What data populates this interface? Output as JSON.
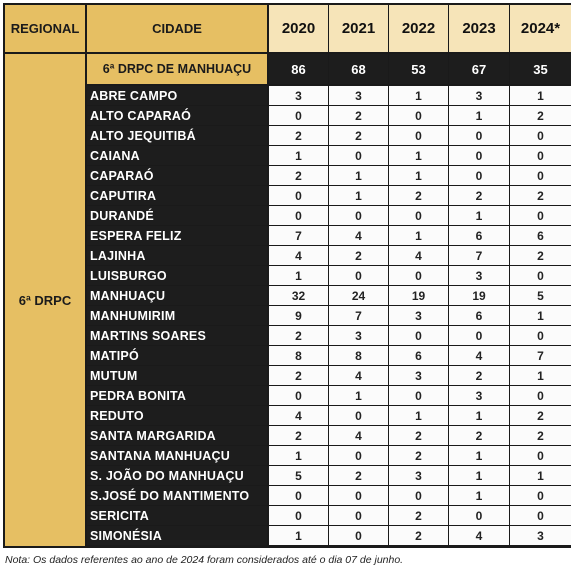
{
  "headers": {
    "regional": "REGIONAL",
    "cidade": "CIDADE",
    "years": [
      "2020",
      "2021",
      "2022",
      "2023",
      "2024*"
    ]
  },
  "regional_label": "6ª DRPC",
  "summary": {
    "label": "6ª DRPC DE MANHUAÇU",
    "values": [
      "86",
      "68",
      "53",
      "67",
      "35"
    ]
  },
  "rows": [
    {
      "city": "ABRE CAMPO",
      "values": [
        "3",
        "3",
        "1",
        "3",
        "1"
      ]
    },
    {
      "city": "ALTO CAPARAÓ",
      "values": [
        "0",
        "2",
        "0",
        "1",
        "2"
      ]
    },
    {
      "city": "ALTO JEQUITIBÁ",
      "values": [
        "2",
        "2",
        "0",
        "0",
        "0"
      ]
    },
    {
      "city": "CAIANA",
      "values": [
        "1",
        "0",
        "1",
        "0",
        "0"
      ]
    },
    {
      "city": "CAPARAÓ",
      "values": [
        "2",
        "1",
        "1",
        "0",
        "0"
      ]
    },
    {
      "city": "CAPUTIRA",
      "values": [
        "0",
        "1",
        "2",
        "2",
        "2"
      ]
    },
    {
      "city": "DURANDÉ",
      "values": [
        "0",
        "0",
        "0",
        "1",
        "0"
      ]
    },
    {
      "city": "ESPERA FELIZ",
      "values": [
        "7",
        "4",
        "1",
        "6",
        "6"
      ]
    },
    {
      "city": "LAJINHA",
      "values": [
        "4",
        "2",
        "4",
        "7",
        "2"
      ]
    },
    {
      "city": "LUISBURGO",
      "values": [
        "1",
        "0",
        "0",
        "3",
        "0"
      ]
    },
    {
      "city": "MANHUAÇU",
      "values": [
        "32",
        "24",
        "19",
        "19",
        "5"
      ]
    },
    {
      "city": "MANHUMIRIM",
      "values": [
        "9",
        "7",
        "3",
        "6",
        "1"
      ]
    },
    {
      "city": "MARTINS SOARES",
      "values": [
        "2",
        "3",
        "0",
        "0",
        "0"
      ]
    },
    {
      "city": "MATIPÓ",
      "values": [
        "8",
        "8",
        "6",
        "4",
        "7"
      ]
    },
    {
      "city": "MUTUM",
      "values": [
        "2",
        "4",
        "3",
        "2",
        "1"
      ]
    },
    {
      "city": "PEDRA BONITA",
      "values": [
        "0",
        "1",
        "0",
        "3",
        "0"
      ]
    },
    {
      "city": "REDUTO",
      "values": [
        "4",
        "0",
        "1",
        "1",
        "2"
      ]
    },
    {
      "city": "SANTA MARGARIDA",
      "values": [
        "2",
        "4",
        "2",
        "2",
        "2"
      ]
    },
    {
      "city": "SANTANA MANHUAÇU",
      "values": [
        "1",
        "0",
        "2",
        "1",
        "0"
      ]
    },
    {
      "city": "S. JOÃO DO MANHUAÇU",
      "values": [
        "5",
        "2",
        "3",
        "1",
        "1"
      ]
    },
    {
      "city": "S.JOSÉ DO MANTIMENTO",
      "values": [
        "0",
        "0",
        "0",
        "1",
        "0"
      ]
    },
    {
      "city": "SERICITA",
      "values": [
        "0",
        "0",
        "2",
        "0",
        "0"
      ]
    },
    {
      "city": "SIMONÉSIA",
      "values": [
        "1",
        "0",
        "2",
        "4",
        "3"
      ]
    }
  ],
  "note": "Nota: Os dados referentes ao ano de 2024 foram considerados até o dia 07 de junho."
}
